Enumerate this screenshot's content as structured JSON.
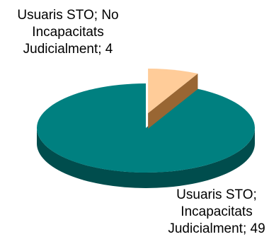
{
  "chart_data": {
    "type": "pie",
    "style": "3d-exploded",
    "slices": [
      {
        "name": "Usuaris STO; No Incapacitats Judicialment",
        "value": 4,
        "label_lines": [
          "Usuaris STO; No",
          "Incapacitats",
          "Judicialment; 4"
        ],
        "color": "#ffcc99",
        "side_color": "#996633",
        "exploded": true
      },
      {
        "name": "Usuaris STO; Incapacitats Judicialment",
        "value": 49,
        "label_lines": [
          "Usuaris STO;",
          "Incapacitats",
          "Judicialment; 49"
        ],
        "color": "#008080",
        "side_color": "#004d4d",
        "exploded": false
      }
    ]
  }
}
